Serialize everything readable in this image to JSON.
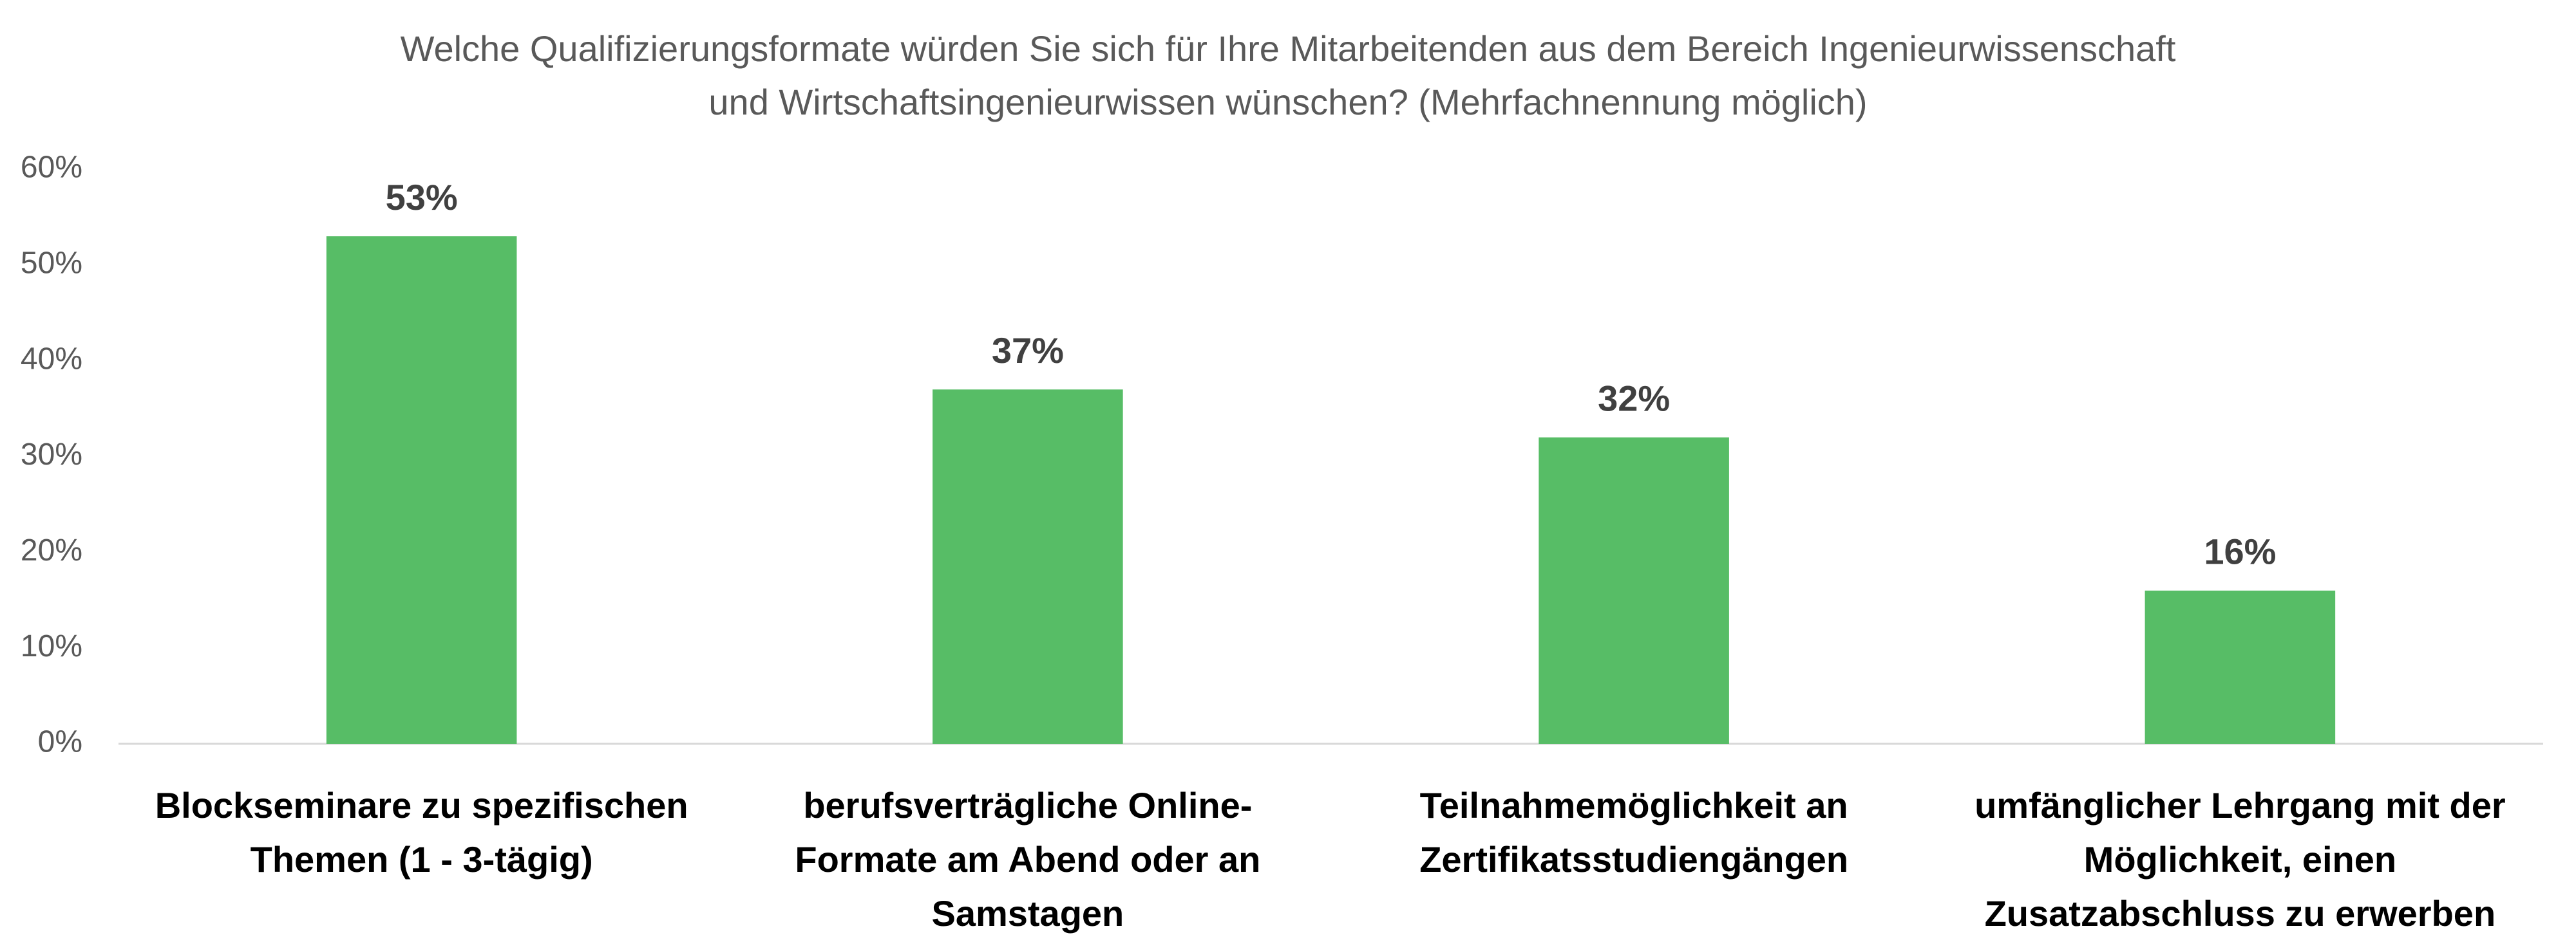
{
  "chart_data": {
    "type": "bar",
    "title": [
      "Welche Qualifizierungsformate würden Sie sich für Ihre Mitarbeitenden aus dem Bereich Ingenieurwissenschaft",
      "und Wirtschaftsingenieurwissen wünschen? (Mehrfachnennung möglich)"
    ],
    "categories": [
      "Blockseminare zu spezifischen Themen (1 - 3-tägig)",
      "berufsverträgliche Online-Formate am Abend oder an Samstagen",
      "Teilnahmemöglichkeit an Zertifikatsstudiengängen",
      "umfänglicher Lehrgang mit der Möglichkeit, einen Zusatzabschluss zu erwerben"
    ],
    "values": [
      53,
      37,
      32,
      16
    ],
    "value_labels": [
      "53%",
      "37%",
      "32%",
      "16%"
    ],
    "color": "#57bd66",
    "ylim": [
      0,
      60
    ],
    "yticks": [
      {
        "value": 0,
        "label": "0%"
      },
      {
        "value": 10,
        "label": "10%"
      },
      {
        "value": 20,
        "label": "20%"
      },
      {
        "value": 30,
        "label": "30%"
      },
      {
        "value": 40,
        "label": "40%"
      },
      {
        "value": 50,
        "label": "50%"
      },
      {
        "value": 60,
        "label": "60%"
      }
    ],
    "grid": false
  }
}
